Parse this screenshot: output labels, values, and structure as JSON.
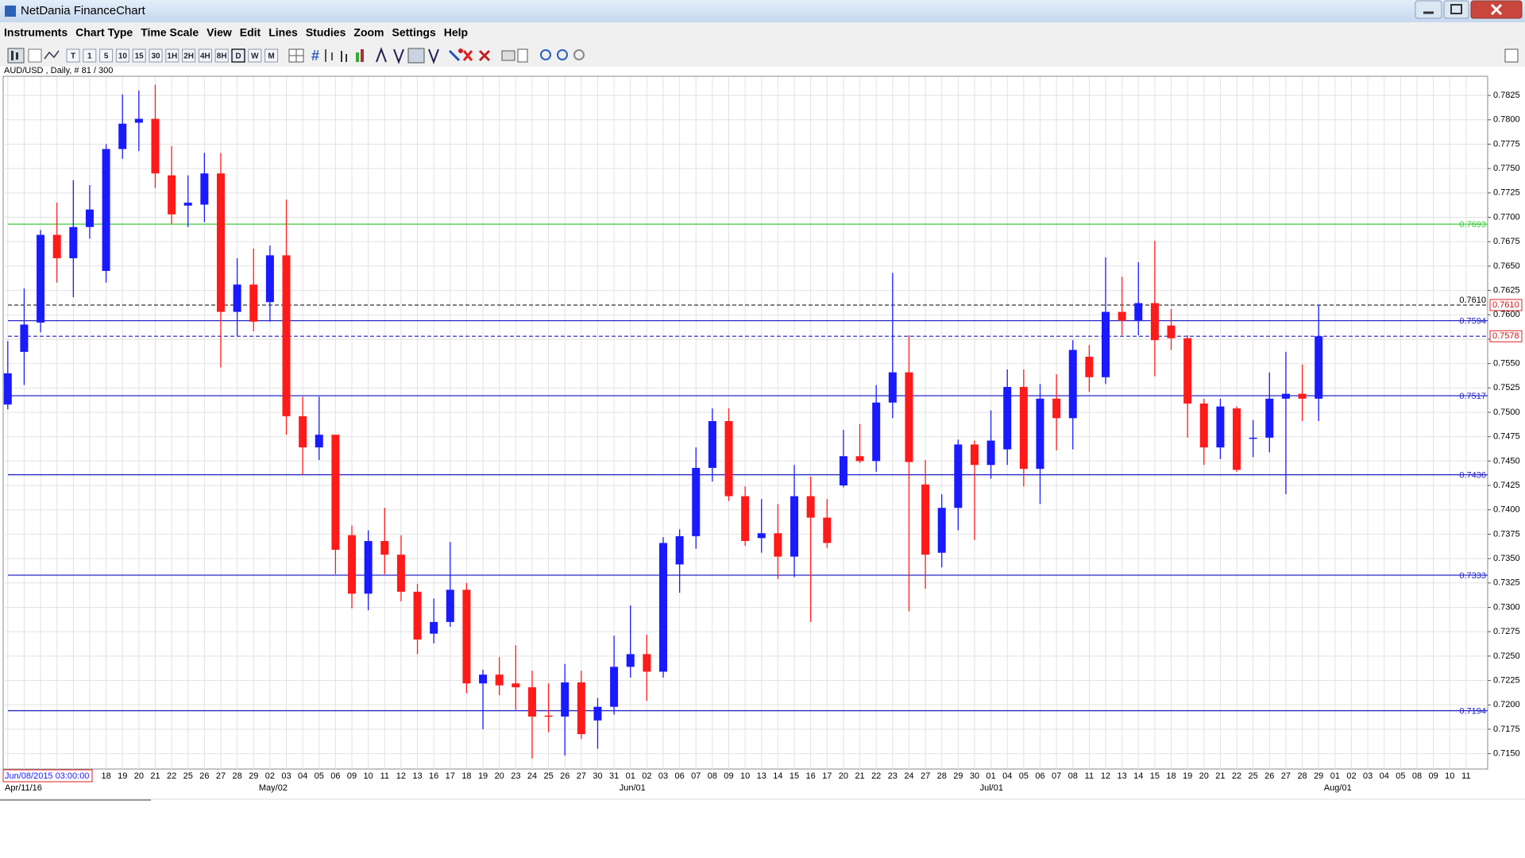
{
  "window": {
    "title": "NetDania FinanceChart",
    "menu": [
      "Instruments",
      "Chart Type",
      "Time Scale",
      "View",
      "Edit",
      "Lines",
      "Studies",
      "Zoom",
      "Settings",
      "Help"
    ],
    "toolbar": [
      "T",
      "1",
      "5",
      "10",
      "15",
      "30",
      "1H",
      "2H",
      "4H",
      "8H",
      "D",
      "W",
      "M"
    ],
    "symbol_info": "AUD/USD , Daily, # 81 / 300",
    "cursor_label": "Jun/08/2015 03:00:00"
  },
  "chart_data": {
    "type": "candlestick",
    "categories": [
      null,
      null,
      null,
      null,
      null,
      null,
      "18",
      "19",
      "20",
      "21",
      "22",
      "25",
      "26",
      "27",
      "28",
      "29",
      "02",
      "03",
      "04",
      "05",
      "06",
      "09",
      "10",
      "11",
      "12",
      "13",
      "16",
      "17",
      "18",
      "19",
      "20",
      "23",
      "24",
      "25",
      "26",
      "27",
      "30",
      "31",
      "01",
      "02",
      "03",
      "06",
      "07",
      "08",
      "09",
      "10",
      "13",
      "14",
      "15",
      "16",
      "17",
      "20",
      "21",
      "22",
      "23",
      "24",
      "27",
      "28",
      "29",
      "30",
      "01",
      "04",
      "05",
      "06",
      "07",
      "08",
      "11",
      "12",
      "13",
      "14",
      "15",
      "18",
      "19",
      "20",
      "21",
      "22",
      "25",
      "26",
      "27",
      "28",
      "29",
      "01",
      "02",
      "03",
      "04",
      "05",
      "08",
      "09",
      "10",
      "11"
    ],
    "month_labels": [
      "Apr/11/16",
      null,
      null,
      null,
      null,
      null,
      null,
      null,
      null,
      null,
      null,
      null,
      null,
      null,
      null,
      null,
      "May/02",
      null,
      null,
      null,
      null,
      null,
      null,
      null,
      null,
      null,
      null,
      null,
      null,
      null,
      null,
      null,
      null,
      null,
      null,
      null,
      null,
      null,
      "Jun/01",
      null,
      null,
      null,
      null,
      null,
      null,
      null,
      null,
      null,
      null,
      null,
      null,
      null,
      null,
      null,
      null,
      null,
      null,
      null,
      null,
      null,
      "Jul/01",
      null,
      null,
      null,
      null,
      null,
      null,
      null,
      null,
      null,
      null,
      null,
      null,
      null,
      null,
      null,
      null,
      null,
      null,
      null,
      null,
      "Aug/01",
      null,
      null,
      null,
      null,
      null,
      null,
      null,
      null
    ],
    "open": [
      0.7508,
      0.7562,
      0.7592,
      0.7682,
      0.7658,
      0.769,
      0.7645,
      0.777,
      0.7797,
      0.7801,
      0.7743,
      0.7712,
      0.7713,
      0.7745,
      0.7603,
      0.7631,
      0.7613,
      0.7661,
      0.7496,
      0.7464,
      0.7477,
      0.7374,
      0.7314,
      0.7368,
      0.7354,
      0.7316,
      0.7273,
      0.7285,
      0.7318,
      0.7222,
      0.7231,
      0.7222,
      0.7218,
      0.7189,
      0.7188,
      0.7223,
      0.7184,
      0.7198,
      0.7239,
      0.7252,
      0.7234,
      0.7344,
      0.7373,
      0.7443,
      0.7491,
      0.7414,
      0.7371,
      0.7376,
      0.7352,
      0.7414,
      0.7392,
      0.7425,
      0.7455,
      0.745,
      0.751,
      0.7541,
      0.7426,
      0.7356,
      0.7402,
      0.7467,
      0.7446,
      0.7462,
      0.7526,
      0.7442,
      0.7514,
      0.7494,
      0.7557,
      0.7536,
      0.7603,
      0.7594,
      0.7612,
      0.7589,
      0.7576,
      0.7509,
      0.7464,
      0.7504,
      0.7473,
      0.7474,
      0.7514,
      0.7519,
      0.7514,
      null,
      null,
      null,
      null,
      null,
      null,
      null,
      null,
      null
    ],
    "high": [
      0.7573,
      0.7627,
      0.7687,
      0.7715,
      0.7738,
      0.7733,
      0.7775,
      0.7826,
      0.783,
      0.7836,
      0.7773,
      0.7743,
      0.7766,
      0.7766,
      0.7658,
      0.7668,
      0.7671,
      0.7718,
      0.7516,
      0.7516,
      0.7477,
      0.7384,
      0.7379,
      0.7402,
      0.7374,
      0.7324,
      0.7309,
      0.7367,
      0.7325,
      0.7236,
      0.7249,
      0.7261,
      0.7235,
      0.7222,
      0.7242,
      0.7235,
      0.7207,
      0.7271,
      0.7302,
      0.7272,
      0.7372,
      0.738,
      0.7464,
      0.7504,
      0.7504,
      0.7424,
      0.7411,
      0.7406,
      0.7446,
      0.7434,
      0.7411,
      0.7482,
      0.7488,
      0.7528,
      0.7643,
      0.7579,
      0.7451,
      0.7416,
      0.7472,
      0.7471,
      0.7502,
      0.7544,
      0.7544,
      0.7529,
      0.7539,
      0.7574,
      0.7569,
      0.7659,
      0.7639,
      0.7654,
      0.7676,
      0.7606,
      0.7579,
      0.7514,
      0.7514,
      0.7506,
      0.7492,
      0.7541,
      0.7562,
      0.7549,
      0.761,
      null,
      null,
      null,
      null,
      null,
      null,
      null,
      null,
      null
    ],
    "low": [
      0.7503,
      0.7528,
      0.7582,
      0.7633,
      0.7618,
      0.7678,
      0.7633,
      0.776,
      0.7768,
      0.773,
      0.7693,
      0.769,
      0.7695,
      0.7546,
      0.7578,
      0.7583,
      0.7593,
      0.7477,
      0.7436,
      0.7451,
      0.7334,
      0.7299,
      0.7297,
      0.7334,
      0.7306,
      0.7252,
      0.7263,
      0.728,
      0.7212,
      0.7175,
      0.721,
      0.7195,
      0.7145,
      0.7172,
      0.7148,
      0.7165,
      0.7155,
      0.719,
      0.7228,
      0.7204,
      0.7228,
      0.7315,
      0.736,
      0.7429,
      0.7409,
      0.7363,
      0.7356,
      0.7329,
      0.7331,
      0.7285,
      0.7361,
      0.7423,
      0.7448,
      0.7439,
      0.7494,
      0.7296,
      0.7319,
      0.7341,
      0.7379,
      0.7369,
      0.7432,
      0.7446,
      0.7424,
      0.7406,
      0.7461,
      0.7462,
      0.7521,
      0.7529,
      0.7579,
      0.7579,
      0.7537,
      0.7564,
      0.7474,
      0.7446,
      0.7452,
      0.7439,
      0.7454,
      0.7459,
      0.7416,
      0.7491,
      0.7491,
      null,
      null,
      null,
      null,
      null,
      null,
      null,
      null,
      null
    ],
    "close": [
      0.754,
      0.759,
      0.7682,
      0.7658,
      0.769,
      0.7708,
      0.777,
      0.7796,
      0.7801,
      0.7745,
      0.7703,
      0.7715,
      0.7745,
      0.7603,
      0.7631,
      0.7593,
      0.7661,
      0.7496,
      0.7464,
      0.7477,
      0.7359,
      0.7314,
      0.7368,
      0.7354,
      0.7316,
      0.7267,
      0.7285,
      0.7318,
      0.7222,
      0.7231,
      0.722,
      0.7218,
      0.7188,
      0.7188,
      0.7223,
      0.717,
      0.7198,
      0.7239,
      0.7252,
      0.7234,
      0.7366,
      0.7373,
      0.7443,
      0.7491,
      0.7414,
      0.7368,
      0.7376,
      0.7352,
      0.7414,
      0.7392,
      0.7366,
      0.7455,
      0.745,
      0.751,
      0.7541,
      0.7449,
      0.7354,
      0.7402,
      0.7467,
      0.7446,
      0.7471,
      0.7526,
      0.7442,
      0.7514,
      0.7494,
      0.7564,
      0.7536,
      0.7603,
      0.7594,
      0.7612,
      0.7574,
      0.7576,
      0.7509,
      0.7464,
      0.7506,
      0.7441,
      0.7474,
      0.7514,
      0.7519,
      0.7514,
      0.7578,
      null,
      null,
      null,
      null,
      null,
      null,
      null,
      null,
      null
    ],
    "up_color": "#1a1aff",
    "down_color": "#ff1a1a",
    "ylim": [
      0.7135,
      0.7843
    ],
    "yticks": [
      {
        "value": 0.715,
        "label": "0.7150"
      },
      0.7175,
      {
        "value": 0.72,
        "label": "0.7200"
      },
      0.7225,
      {
        "value": 0.725,
        "label": "0.7250"
      },
      0.7275,
      {
        "value": 0.73,
        "label": "0.7300"
      },
      0.7325,
      {
        "value": 0.735,
        "label": "0.7350"
      },
      0.7375,
      {
        "value": 0.74,
        "label": "0.7400"
      },
      0.7425,
      {
        "value": 0.745,
        "label": "0.7450"
      },
      0.7475,
      {
        "value": 0.75,
        "label": "0.7500"
      },
      0.7525,
      {
        "value": 0.755,
        "label": "0.7550"
      },
      0.7575,
      {
        "value": 0.76,
        "label": "0.7600"
      },
      0.7625,
      {
        "value": 0.765,
        "label": "0.7650"
      },
      0.7675,
      {
        "value": 0.77,
        "label": "0.7700"
      },
      0.7725,
      {
        "value": 0.775,
        "label": "0.7750"
      },
      0.7775,
      {
        "value": 0.78,
        "label": "0.7800"
      },
      0.7825
    ],
    "grid": true,
    "levels": [
      {
        "value": 0.7693,
        "color": "#3ccc3c",
        "style": "solid"
      },
      {
        "value": 0.761,
        "label": "0.7610",
        "color": "#333333",
        "style": "dashed"
      },
      {
        "value": 0.7594,
        "color": "#2727c8",
        "style": "solid"
      },
      {
        "value": 0.7578,
        "color": "#3333cc",
        "style": "dashed",
        "plot_label": false
      },
      {
        "value": 0.7517,
        "color": "#2727c8",
        "style": "solid"
      },
      {
        "value": 0.7436,
        "color": "#2727c8",
        "style": "solid"
      },
      {
        "value": 0.7333,
        "color": "#2727c8",
        "style": "solid"
      },
      {
        "value": 0.7194,
        "color": "#2727c8",
        "style": "solid"
      }
    ]
  }
}
